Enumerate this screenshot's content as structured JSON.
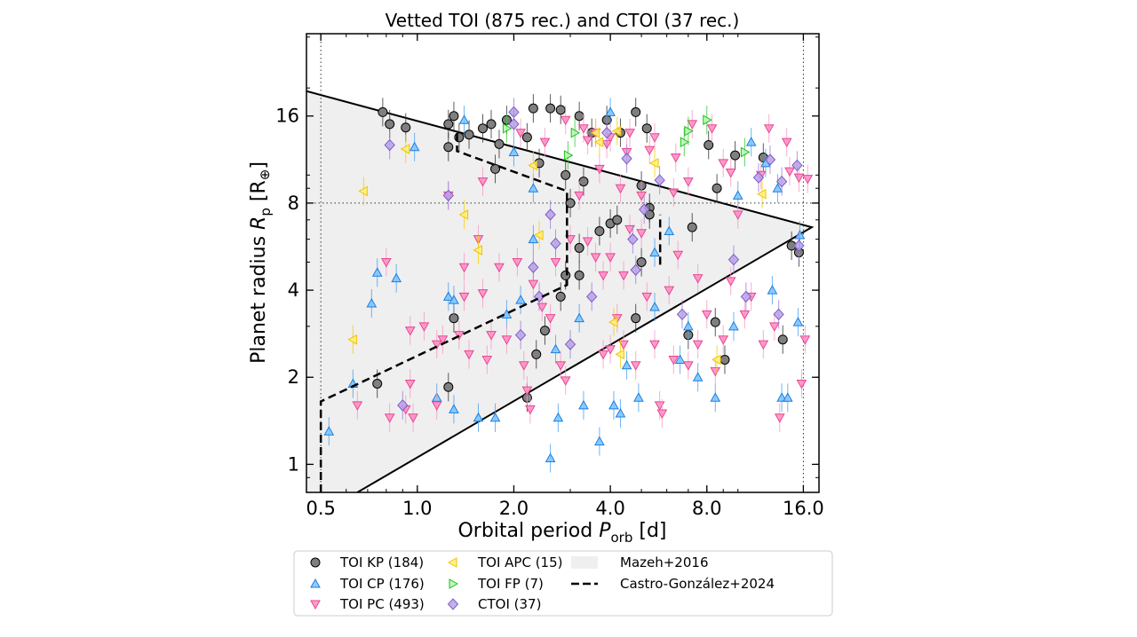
{
  "chart_data": {
    "type": "scatter",
    "title": "Vetted TOI (875 rec.) and CTOI (37 rec.)",
    "xlabel": "Orbital period P_orb [d]",
    "xlabel_parts": {
      "main": "Orbital period ",
      "symbol": "P",
      "sub": "orb",
      "unit": " [d]"
    },
    "ylabel": "Planet radius R_p [R_⊕]",
    "ylabel_parts": {
      "main": "Planet radius ",
      "symbol": "R",
      "sub": "p",
      "unit_open": " [R",
      "unit_sub": "⊕",
      "unit_close": "]"
    },
    "x_scale": "log2",
    "y_scale": "log2",
    "xlim": [
      0.451,
      17.9
    ],
    "ylim": [
      0.8,
      30.8
    ],
    "x_ticks": [
      0.5,
      1.0,
      2.0,
      4.0,
      8.0,
      16.0
    ],
    "x_tick_labels": [
      "0.5",
      "1.0",
      "2.0",
      "4.0",
      "8.0",
      "16.0"
    ],
    "y_ticks": [
      1,
      2,
      4,
      8,
      16
    ],
    "y_tick_labels": [
      "1",
      "2",
      "4",
      "8",
      "16"
    ],
    "grid": false,
    "reference_lines": {
      "vertical_dotted": [
        0.5,
        16.0
      ],
      "horizontal_dotted": [
        8
      ]
    },
    "legend_placement": "below",
    "regions": [
      {
        "name": "Mazeh+2016",
        "color": "#efefef",
        "polygon": [
          [
            0.451,
            19.5
          ],
          [
            17.0,
            6.6
          ],
          [
            0.65,
            0.8
          ],
          [
            0.451,
            0.8
          ]
        ],
        "outline": [
          [
            [
              0.451,
              19.5
            ],
            [
              17.0,
              6.6
            ],
            [
              0.65,
              0.8
            ]
          ]
        ]
      }
    ],
    "boundaries": [
      {
        "name": "Castro-González+2024",
        "style": "dashed",
        "color": "#000000",
        "segments": [
          [
            [
              0.5,
              0.8
            ],
            [
              0.5,
              1.65
            ],
            [
              2.93,
              4.17
            ],
            [
              2.93,
              8.8
            ],
            [
              1.33,
              12.1
            ],
            [
              1.33,
              14.0
            ]
          ],
          [
            [
              5.72,
              4.9
            ],
            [
              5.72,
              7.3
            ]
          ]
        ]
      }
    ],
    "series": [
      {
        "name": "TOI KP (184)",
        "marker": "circle",
        "fill": "#7f7f7f",
        "edge": "#000000",
        "err": "#333333",
        "points": [
          [
            0.78,
            16.5
          ],
          [
            0.82,
            15
          ],
          [
            0.92,
            14.6
          ],
          [
            1.25,
            15
          ],
          [
            1.25,
            12.5
          ],
          [
            1.3,
            16
          ],
          [
            1.35,
            13.5
          ],
          [
            1.45,
            13.8
          ],
          [
            1.6,
            14.5
          ],
          [
            1.7,
            15
          ],
          [
            1.8,
            12.8
          ],
          [
            1.9,
            15.5
          ],
          [
            2.2,
            13.5
          ],
          [
            2.3,
            17
          ],
          [
            2.6,
            17
          ],
          [
            2.8,
            16.8
          ],
          [
            3.2,
            16
          ],
          [
            3.5,
            14
          ],
          [
            3.9,
            15.5
          ],
          [
            4.3,
            14
          ],
          [
            4.8,
            16.5
          ],
          [
            5.2,
            14.5
          ],
          [
            2.4,
            11
          ],
          [
            2.9,
            10
          ],
          [
            3.0,
            8
          ],
          [
            1.75,
            10.5
          ],
          [
            0.75,
            1.9
          ],
          [
            1.25,
            1.85
          ],
          [
            1.3,
            3.2
          ],
          [
            2.2,
            1.7
          ],
          [
            2.35,
            2.4
          ],
          [
            2.5,
            2.9
          ],
          [
            2.8,
            3.8
          ],
          [
            2.9,
            4.5
          ],
          [
            3.2,
            4.5
          ],
          [
            3.2,
            5.6
          ],
          [
            3.7,
            6.4
          ],
          [
            4.0,
            6.8
          ],
          [
            4.2,
            7.0
          ],
          [
            5.0,
            5.0
          ],
          [
            5.3,
            7.7
          ],
          [
            5.3,
            7.3
          ],
          [
            7.2,
            6.6
          ],
          [
            8.6,
            9
          ],
          [
            8.5,
            3.1
          ],
          [
            9.1,
            2.3
          ],
          [
            13.8,
            2.7
          ],
          [
            14.7,
            5.7
          ],
          [
            15.5,
            5.4
          ],
          [
            7.0,
            2.8
          ],
          [
            12,
            11.5
          ],
          [
            9.8,
            11.7
          ],
          [
            8.1,
            12.7
          ],
          [
            4.8,
            3.2
          ],
          [
            5.0,
            9.2
          ],
          [
            3.3,
            9.5
          ]
        ]
      },
      {
        "name": "TOI CP (176)",
        "marker": "triangle-up",
        "fill": "#7cc4ff",
        "edge": "#1a7fe0",
        "err": "#4aa3f0",
        "points": [
          [
            0.53,
            1.3
          ],
          [
            0.63,
            1.9
          ],
          [
            0.72,
            3.6
          ],
          [
            0.75,
            4.6
          ],
          [
            0.86,
            4.4
          ],
          [
            0.98,
            12.5
          ],
          [
            1.15,
            1.7
          ],
          [
            1.25,
            3.8
          ],
          [
            1.3,
            3.7
          ],
          [
            1.3,
            1.55
          ],
          [
            1.55,
            1.45
          ],
          [
            1.75,
            1.45
          ],
          [
            1.9,
            3.3
          ],
          [
            2.0,
            12
          ],
          [
            2.1,
            3.7
          ],
          [
            2.3,
            6.0
          ],
          [
            2.3,
            9.0
          ],
          [
            2.6,
            1.05
          ],
          [
            2.75,
            1.45
          ],
          [
            2.7,
            2.5
          ],
          [
            3.2,
            3.2
          ],
          [
            3.3,
            1.6
          ],
          [
            3.7,
            1.2
          ],
          [
            4.1,
            1.6
          ],
          [
            4.3,
            1.5
          ],
          [
            4.5,
            2.2
          ],
          [
            4.9,
            1.7
          ],
          [
            5.5,
            5.4
          ],
          [
            5.5,
            3.5
          ],
          [
            6.1,
            6.4
          ],
          [
            7.0,
            3.0
          ],
          [
            7.5,
            2.0
          ],
          [
            8.5,
            1.7
          ],
          [
            11,
            13
          ],
          [
            12.2,
            11
          ],
          [
            13.3,
            9.0
          ],
          [
            13.7,
            1.7
          ],
          [
            14.3,
            1.7
          ],
          [
            15.4,
            3.1
          ],
          [
            15.6,
            6.2
          ],
          [
            4.0,
            16.5
          ],
          [
            10.0,
            8.5
          ],
          [
            12.8,
            4.0
          ],
          [
            9.7,
            3.0
          ],
          [
            1.4,
            15.5
          ],
          [
            6.6,
            2.3
          ]
        ]
      },
      {
        "name": "TOI PC (493)",
        "marker": "triangle-down",
        "fill": "#ff8cc6",
        "edge": "#e8468f",
        "err": "#f59ac6",
        "points": [
          [
            0.65,
            1.6
          ],
          [
            0.8,
            5.0
          ],
          [
            0.82,
            1.45
          ],
          [
            0.92,
            1.55
          ],
          [
            0.95,
            1.9
          ],
          [
            0.95,
            2.9
          ],
          [
            1.05,
            3.0
          ],
          [
            1.15,
            2.6
          ],
          [
            1.2,
            2.7
          ],
          [
            1.25,
            8.5
          ],
          [
            1.35,
            2.8
          ],
          [
            1.4,
            3.8
          ],
          [
            1.4,
            4.8
          ],
          [
            1.45,
            2.4
          ],
          [
            1.55,
            6.0
          ],
          [
            1.6,
            3.9
          ],
          [
            1.65,
            2.3
          ],
          [
            1.7,
            2.8
          ],
          [
            1.8,
            4.8
          ],
          [
            1.9,
            2.7
          ],
          [
            2.05,
            5.0
          ],
          [
            2.15,
            2.2
          ],
          [
            2.2,
            1.8
          ],
          [
            2.3,
            4.2
          ],
          [
            2.45,
            3.5
          ],
          [
            2.6,
            3.2
          ],
          [
            2.7,
            5.0
          ],
          [
            2.8,
            2.2
          ],
          [
            2.9,
            1.95
          ],
          [
            3.0,
            6.0
          ],
          [
            3.2,
            8.5
          ],
          [
            3.4,
            5.9
          ],
          [
            3.6,
            5.2
          ],
          [
            3.8,
            4.5
          ],
          [
            4.0,
            5.2
          ],
          [
            4.2,
            3.2
          ],
          [
            4.4,
            4.5
          ],
          [
            4.6,
            6.5
          ],
          [
            4.8,
            2.2
          ],
          [
            5.0,
            6.3
          ],
          [
            5.2,
            3.8
          ],
          [
            5.5,
            2.6
          ],
          [
            5.7,
            1.6
          ],
          [
            5.8,
            1.5
          ],
          [
            6.1,
            4.0
          ],
          [
            6.5,
            5.3
          ],
          [
            7.0,
            2.2
          ],
          [
            7.5,
            4.4
          ],
          [
            8.0,
            3.3
          ],
          [
            8.5,
            2.1
          ],
          [
            9.0,
            2.7
          ],
          [
            9.5,
            4.3
          ],
          [
            10.0,
            7.3
          ],
          [
            10.5,
            3.3
          ],
          [
            11.0,
            3.8
          ],
          [
            12.0,
            2.6
          ],
          [
            13.0,
            3.0
          ],
          [
            13.5,
            1.45
          ],
          [
            14.2,
            13.0
          ],
          [
            14.5,
            10.3
          ],
          [
            15.5,
            9.8
          ],
          [
            16.5,
            9.7
          ],
          [
            16.2,
            2.7
          ],
          [
            15.8,
            1.9
          ],
          [
            7.2,
            15.0
          ],
          [
            8.3,
            14.5
          ],
          [
            9.0,
            11.0
          ],
          [
            6.4,
            11.5
          ],
          [
            5.5,
            13.5
          ],
          [
            4.5,
            12.0
          ],
          [
            3.3,
            14.5
          ],
          [
            2.9,
            15.5
          ],
          [
            2.5,
            13.0
          ],
          [
            2.1,
            14.0
          ],
          [
            1.6,
            9.5
          ],
          [
            3.7,
            10.5
          ],
          [
            4.3,
            9.0
          ],
          [
            5.0,
            8.5
          ],
          [
            6.3,
            8.7
          ],
          [
            7.0,
            9.5
          ],
          [
            9.5,
            10.2
          ],
          [
            11.8,
            10.0
          ],
          [
            3.6,
            14.0
          ],
          [
            4.0,
            13.5
          ],
          [
            3.9,
            12.8
          ],
          [
            3.4,
            13.2
          ],
          [
            4.6,
            14.0
          ],
          [
            5.3,
            12.2
          ],
          [
            12.5,
            14.5
          ],
          [
            4.0,
            2.5
          ],
          [
            3.8,
            2.4
          ],
          [
            4.4,
            2.6
          ],
          [
            6.3,
            2.3
          ],
          [
            7.5,
            2.6
          ],
          [
            2.25,
            1.55
          ],
          [
            1.15,
            1.6
          ],
          [
            0.97,
            1.45
          ]
        ]
      },
      {
        "name": "TOI APC (15)",
        "marker": "triangle-left",
        "fill": "#fff176",
        "edge": "#f2c200",
        "err": "#f5d000",
        "points": [
          [
            0.63,
            2.7
          ],
          [
            0.68,
            8.8
          ],
          [
            0.92,
            12.3
          ],
          [
            1.4,
            7.3
          ],
          [
            1.55,
            5.5
          ],
          [
            2.3,
            10.8
          ],
          [
            2.4,
            6.2
          ],
          [
            3.6,
            14
          ],
          [
            4.2,
            14.2
          ],
          [
            4.1,
            3.1
          ],
          [
            4.3,
            2.4
          ],
          [
            5.5,
            11.0
          ],
          [
            8.6,
            2.3
          ],
          [
            11.9,
            8.6
          ],
          [
            3.7,
            13.0
          ]
        ]
      },
      {
        "name": "TOI FP (7)",
        "marker": "triangle-right",
        "fill": "#b9f5b0",
        "edge": "#1fbf1f",
        "err": "#33cc33",
        "points": [
          [
            1.9,
            14.5
          ],
          [
            2.95,
            11.7
          ],
          [
            3.1,
            14.0
          ],
          [
            6.8,
            13.0
          ],
          [
            7.0,
            14.2
          ],
          [
            8.0,
            15.5
          ],
          [
            10.5,
            12.0
          ]
        ]
      },
      {
        "name": "CTOI (37)",
        "marker": "diamond",
        "fill": "#b8a2e8",
        "edge": "#7e5bc9",
        "err": "#9b7fd9",
        "points": [
          [
            0.82,
            12.7
          ],
          [
            0.9,
            1.6
          ],
          [
            1.25,
            8.5
          ],
          [
            2.0,
            16.5
          ],
          [
            2.0,
            15.0
          ],
          [
            2.1,
            2.8
          ],
          [
            2.3,
            4.8
          ],
          [
            2.4,
            3.8
          ],
          [
            2.6,
            7.3
          ],
          [
            2.7,
            5.8
          ],
          [
            3.0,
            2.6
          ],
          [
            3.5,
            3.8
          ],
          [
            4.8,
            4.7
          ],
          [
            4.7,
            6.0
          ],
          [
            5.1,
            7.6
          ],
          [
            5.7,
            9.6
          ],
          [
            6.7,
            3.3
          ],
          [
            9.7,
            5.1
          ],
          [
            10.6,
            3.8
          ],
          [
            11.6,
            9.8
          ],
          [
            12.6,
            11.3
          ],
          [
            13.7,
            9.5
          ],
          [
            15.3,
            10.8
          ],
          [
            15.5,
            5.7
          ],
          [
            13.4,
            3.3
          ],
          [
            4.5,
            11.4
          ],
          [
            3.9,
            14.0
          ]
        ]
      }
    ],
    "legend": {
      "entries": [
        {
          "label": "TOI KP (184)",
          "series": 0
        },
        {
          "label": "TOI CP (176)",
          "series": 1
        },
        {
          "label": "TOI PC (493)",
          "series": 2
        },
        {
          "label": "TOI APC (15)",
          "series": 3
        },
        {
          "label": "TOI FP (7)",
          "series": 4
        },
        {
          "label": "CTOI (37)",
          "series": 5
        },
        {
          "label": "Mazeh+2016",
          "kind": "patch"
        },
        {
          "label": "Castro-González+2024",
          "kind": "dashed"
        }
      ]
    }
  }
}
